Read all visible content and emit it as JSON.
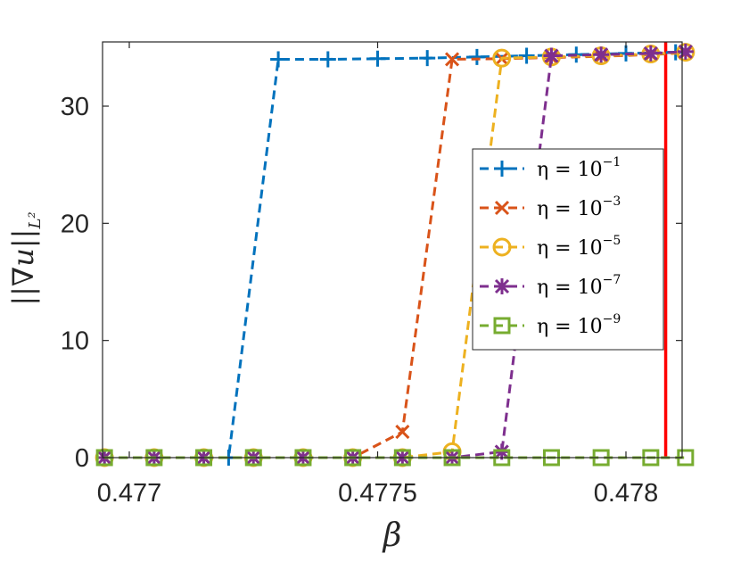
{
  "chart_data": {
    "type": "line",
    "title": "",
    "xlabel": "β",
    "ylabel": "||∇u||",
    "ylabel_sub": "L²",
    "xlim": [
      0.47695,
      0.47812
    ],
    "ylim": [
      0,
      35.5
    ],
    "xticks": [
      0.477,
      0.4775,
      0.478
    ],
    "xtick_labels": [
      "0.477",
      "0.4775",
      "0.478"
    ],
    "yticks": [
      0,
      10,
      20,
      30
    ],
    "ytick_labels": [
      "0",
      "10",
      "20",
      "30"
    ],
    "grid": false,
    "legend_position": "center-right",
    "critical_line": {
      "x": 0.47808,
      "color": "#ff0000"
    },
    "series": [
      {
        "name": "η = 10",
        "exp": "−1",
        "marker": "plus",
        "color": "#0072bd",
        "x": [
          0.47695,
          0.47705,
          0.47715,
          0.4772,
          0.4773,
          0.4774,
          0.4775,
          0.4776,
          0.4777,
          0.4778,
          0.4779,
          0.478,
          0.4781
        ],
        "y": [
          0,
          0,
          0,
          0,
          34.0,
          34.0,
          34.05,
          34.1,
          34.2,
          34.3,
          34.4,
          34.5,
          34.6
        ]
      },
      {
        "name": "η = 10",
        "exp": "−3",
        "marker": "x",
        "color": "#d95319",
        "x": [
          0.47695,
          0.47705,
          0.47715,
          0.47725,
          0.47735,
          0.47745,
          0.47755,
          0.47765,
          0.47775,
          0.47785,
          0.47795,
          0.47805,
          0.47812
        ],
        "y": [
          0,
          0,
          0,
          0,
          0,
          0,
          2.2,
          34.0,
          34.05,
          34.15,
          34.25,
          34.4,
          34.55
        ]
      },
      {
        "name": "η = 10",
        "exp": "−5",
        "marker": "circle",
        "color": "#edb120",
        "x": [
          0.47695,
          0.47705,
          0.47715,
          0.47725,
          0.47735,
          0.47745,
          0.47755,
          0.47765,
          0.47775,
          0.47785,
          0.47795,
          0.47805,
          0.47812
        ],
        "y": [
          0,
          0,
          0,
          0,
          0,
          0,
          0,
          0.5,
          34.1,
          34.2,
          34.3,
          34.45,
          34.6
        ]
      },
      {
        "name": "η = 10",
        "exp": "−7",
        "marker": "star",
        "color": "#7e2f8e",
        "x": [
          0.47695,
          0.47705,
          0.47715,
          0.47725,
          0.47735,
          0.47745,
          0.47755,
          0.47765,
          0.47775,
          0.47785,
          0.47795,
          0.47805,
          0.47812
        ],
        "y": [
          0,
          0,
          0,
          0,
          0,
          0,
          0,
          0,
          0.5,
          34.3,
          34.4,
          34.5,
          34.65
        ]
      },
      {
        "name": "η = 10",
        "exp": "−9",
        "marker": "square",
        "color": "#77ac30",
        "x": [
          0.47695,
          0.47705,
          0.47715,
          0.47725,
          0.47735,
          0.47745,
          0.47755,
          0.47765,
          0.47775,
          0.47785,
          0.47795,
          0.47805,
          0.47812
        ],
        "y": [
          0,
          0,
          0,
          0,
          0,
          0,
          0,
          0,
          0,
          0,
          0,
          0,
          0
        ]
      }
    ]
  }
}
